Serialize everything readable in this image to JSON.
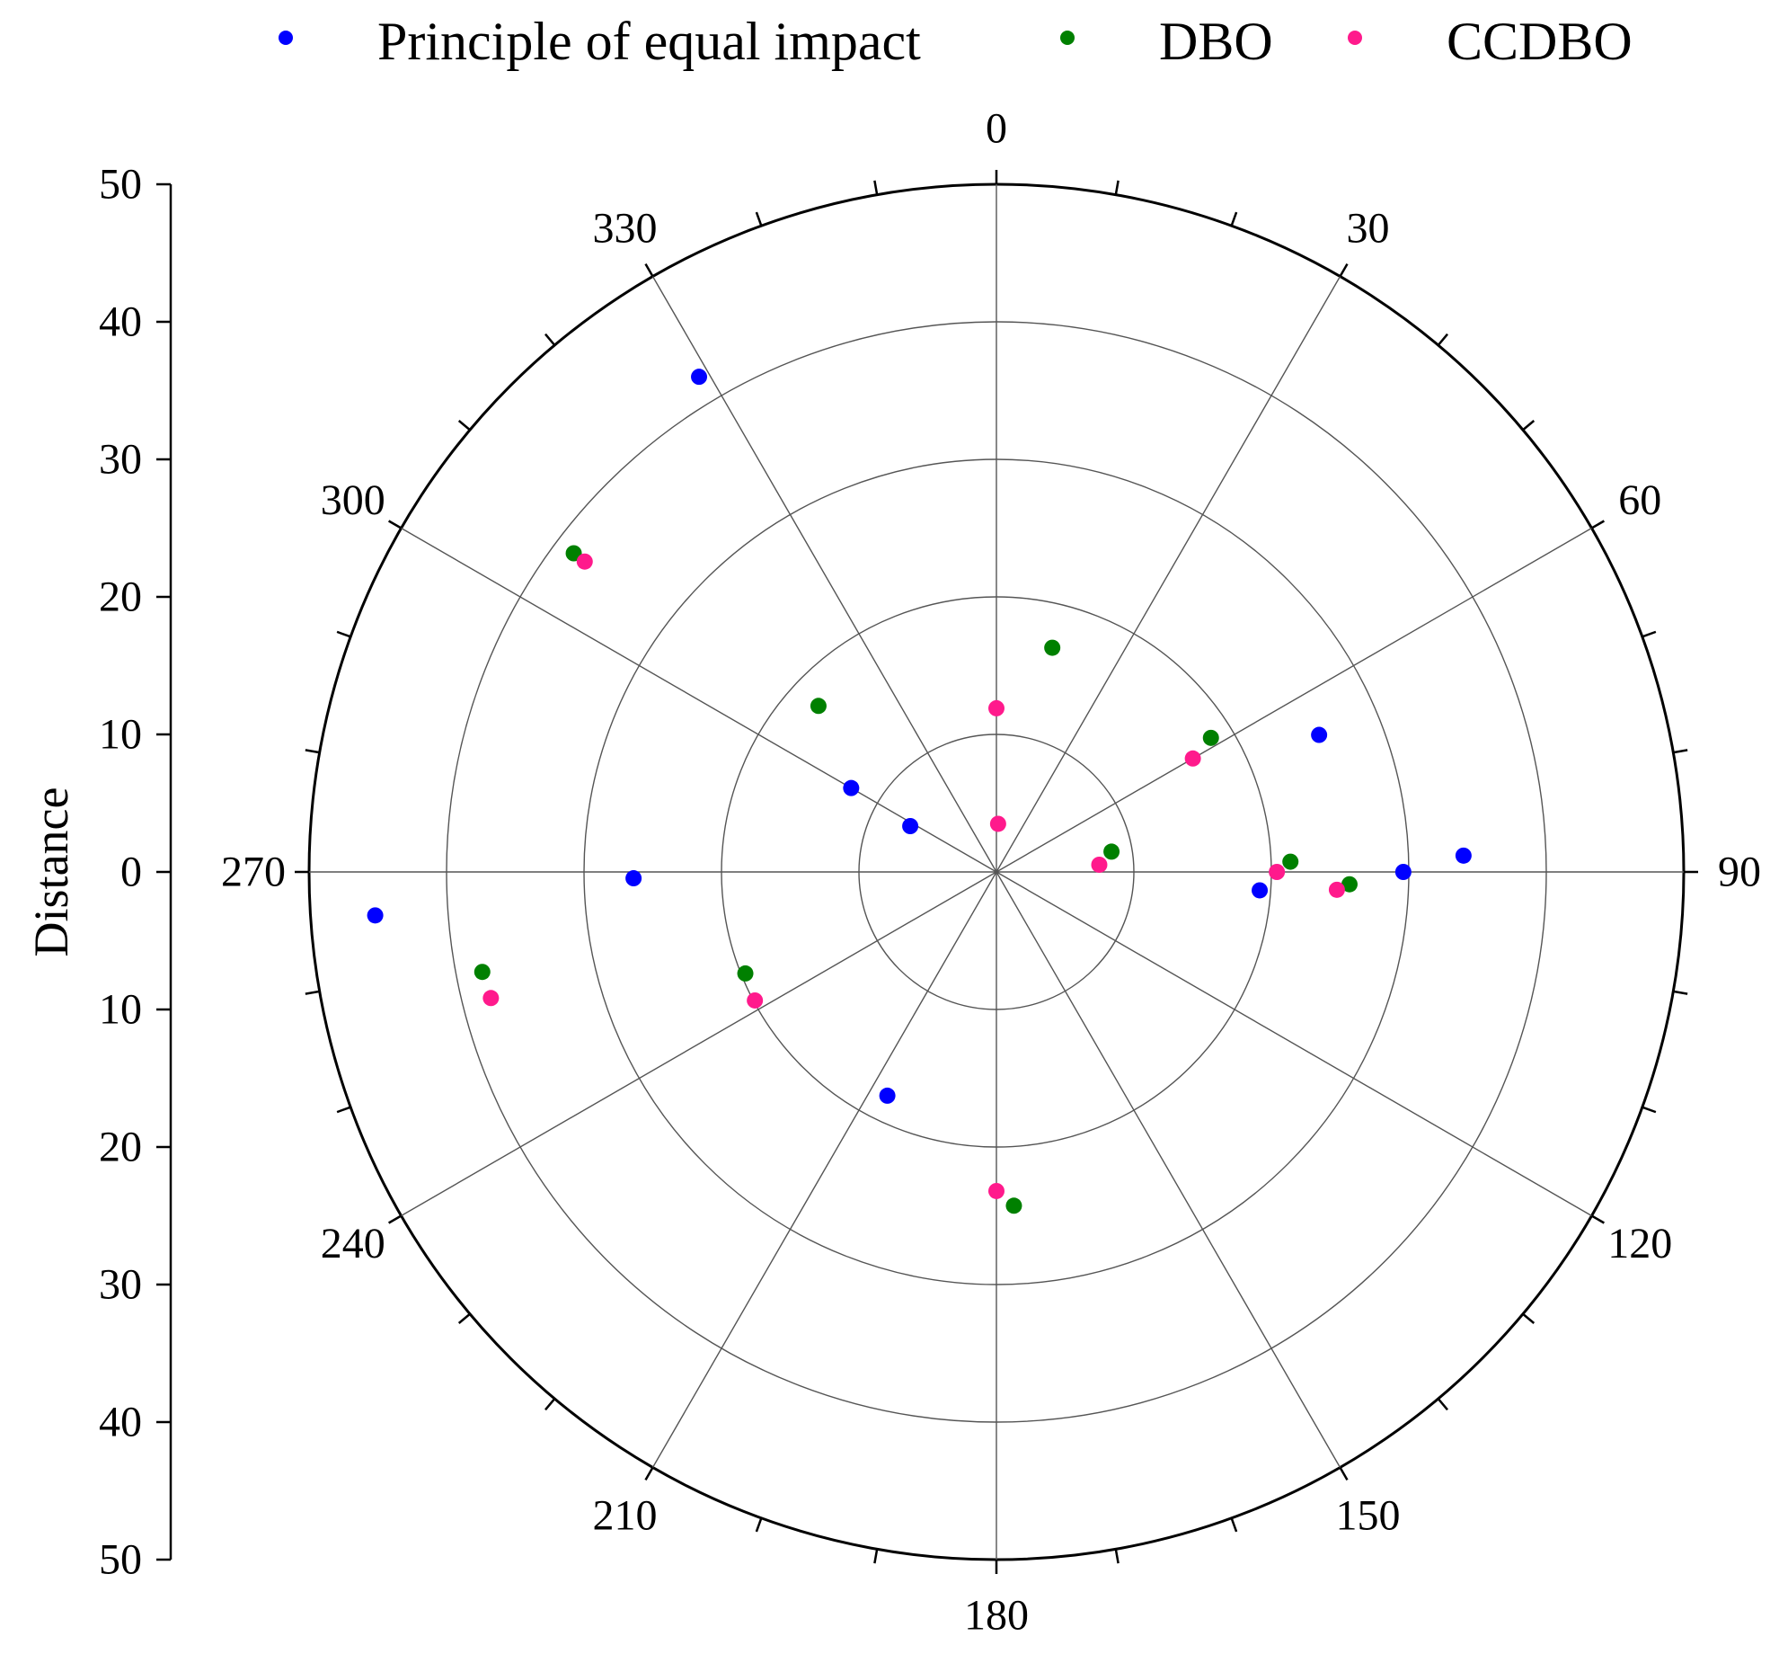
{
  "chart_data": {
    "type": "polar-scatter",
    "title": "",
    "ylabel": "Distance",
    "r_range": [
      0,
      50
    ],
    "r_ticks": [
      50,
      40,
      30,
      20,
      10,
      0,
      10,
      20,
      30,
      40,
      50
    ],
    "angle_ticks": [
      0,
      30,
      60,
      90,
      120,
      150,
      180,
      210,
      240,
      270,
      300,
      330
    ],
    "angle_direction": "clockwise",
    "zero_angle": "top",
    "legend_position": "top",
    "series": [
      {
        "name": "Principle of equal impact",
        "color": "#0000ff",
        "points": [
          {
            "theta": 329,
            "r": 42
          },
          {
            "theta": 90,
            "r": 29.6
          },
          {
            "theta": 88,
            "r": 34.0
          },
          {
            "theta": 94,
            "r": 19.2
          },
          {
            "theta": 67,
            "r": 25.5
          },
          {
            "theta": 269,
            "r": 26.4
          },
          {
            "theta": 266,
            "r": 45.3
          },
          {
            "theta": 300,
            "r": 12.2
          },
          {
            "theta": 298,
            "r": 7.1
          },
          {
            "theta": 206,
            "r": 18.1
          }
        ]
      },
      {
        "name": "DBO",
        "color": "#008000",
        "points": [
          {
            "theta": 14,
            "r": 16.8
          },
          {
            "theta": 58,
            "r": 18.4
          },
          {
            "theta": 80,
            "r": 8.5
          },
          {
            "theta": 88,
            "r": 21.4
          },
          {
            "theta": 92,
            "r": 25.7
          },
          {
            "theta": 313,
            "r": 17.7
          },
          {
            "theta": 307,
            "r": 38.5
          },
          {
            "theta": 248,
            "r": 19.7
          },
          {
            "theta": 259,
            "r": 38.1
          },
          {
            "theta": 177,
            "r": 24.3
          }
        ]
      },
      {
        "name": "CCDBO",
        "color": "#ff1a8c",
        "points": [
          {
            "theta": 0,
            "r": 11.9
          },
          {
            "theta": 2,
            "r": 3.5
          },
          {
            "theta": 86,
            "r": 7.5
          },
          {
            "theta": 90,
            "r": 20.4
          },
          {
            "theta": 93,
            "r": 24.8
          },
          {
            "theta": 60,
            "r": 16.5
          },
          {
            "theta": 307,
            "r": 37.5
          },
          {
            "theta": 242,
            "r": 19.9
          },
          {
            "theta": 256,
            "r": 37.9
          },
          {
            "theta": 180,
            "r": 23.2
          }
        ]
      }
    ]
  }
}
